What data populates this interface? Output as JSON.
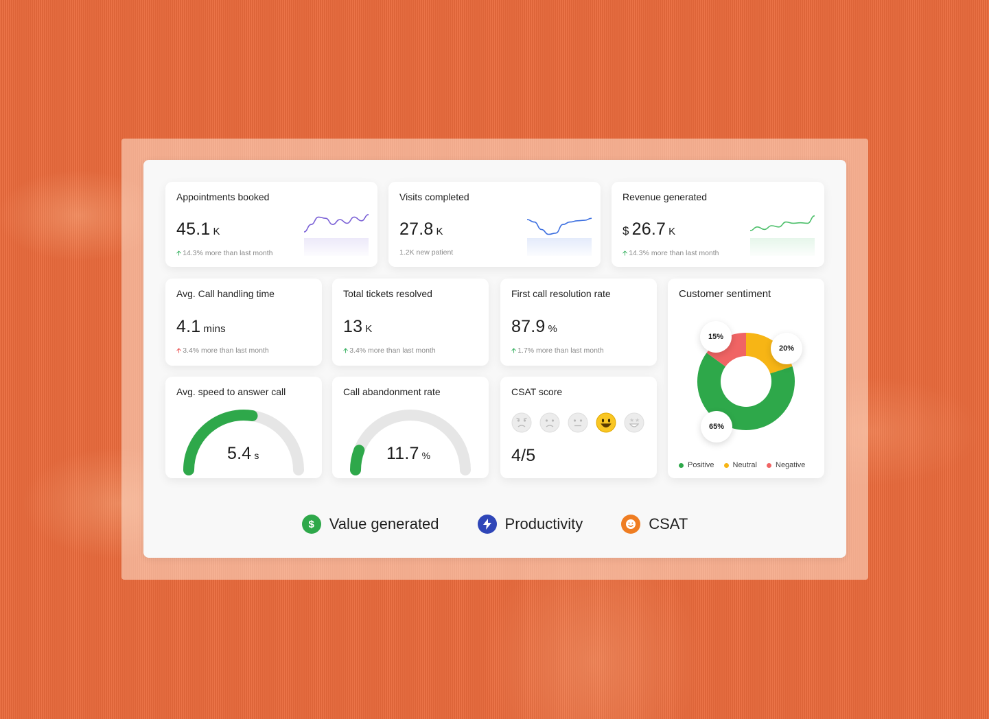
{
  "cards": {
    "appointments": {
      "title": "Appointments booked",
      "value": "45.1",
      "unit": "K",
      "delta": "14.3% more than last month",
      "trend": "up",
      "spark_color": "#7b61d6",
      "spark": [
        0.25,
        0.55,
        0.85,
        0.8,
        0.55,
        0.75,
        0.6,
        0.85,
        0.7,
        0.95
      ]
    },
    "visits": {
      "title": "Visits completed",
      "value": "27.8",
      "unit": "K",
      "delta": "1.2K new patient",
      "spark_color": "#3c6fe0",
      "spark": [
        0.75,
        0.65,
        0.35,
        0.15,
        0.2,
        0.55,
        0.65,
        0.7,
        0.72,
        0.8
      ]
    },
    "revenue": {
      "title": "Revenue generated",
      "prefix": "$",
      "value": "26.7",
      "unit": "K",
      "delta": "14.3% more than last month",
      "trend": "up",
      "spark_color": "#4cbf6a",
      "spark": [
        0.3,
        0.45,
        0.35,
        0.5,
        0.45,
        0.65,
        0.6,
        0.62,
        0.6,
        0.9
      ]
    },
    "call_handling": {
      "title": "Avg. Call handling time",
      "value": "4.1",
      "unit": "mins",
      "delta": "3.4% more than last month",
      "trend": "up-red"
    },
    "tickets": {
      "title": "Total tickets resolved",
      "value": "13",
      "unit": "K",
      "delta": "3.4% more than last month",
      "trend": "up"
    },
    "first_call": {
      "title": "First call resolution rate",
      "value": "87.9",
      "unit": "%",
      "delta": "1.7% more than last month",
      "trend": "up"
    },
    "speed_answer": {
      "title": "Avg. speed to answer call",
      "value": "5.4",
      "unit": "s",
      "gauge_fraction": 0.55,
      "gauge_color": "#2ea84a"
    },
    "abandonment": {
      "title": "Call abandonment rate",
      "value": "11.7",
      "unit": "%",
      "gauge_fraction": 0.117,
      "gauge_color": "#2ea84a"
    },
    "csat": {
      "title": "CSAT score",
      "value": "4/5",
      "selected_index": 3,
      "faces": [
        "angry-face-icon",
        "sad-face-icon",
        "neutral-face-icon",
        "happy-face-icon",
        "star-struck-face-icon"
      ]
    }
  },
  "sentiment": {
    "title": "Customer sentiment",
    "chart_data": {
      "type": "pie",
      "labels": [
        "Positive",
        "Neutral",
        "Negative"
      ],
      "values": [
        65,
        20,
        15
      ],
      "colors": [
        "#2ea84a",
        "#f7b515",
        "#f06464"
      ],
      "value_labels": [
        "65%",
        "20%",
        "15%"
      ],
      "legend_position": "bottom"
    }
  },
  "legend": {
    "value_generated": {
      "label": "Value generated",
      "icon": "dollar-icon",
      "color": "#2ea84a"
    },
    "productivity": {
      "label": "Productivity",
      "icon": "lightning-icon",
      "color": "#2f46b8"
    },
    "csat": {
      "label": "CSAT",
      "icon": "smiley-icon",
      "color": "#ef7d22"
    }
  }
}
